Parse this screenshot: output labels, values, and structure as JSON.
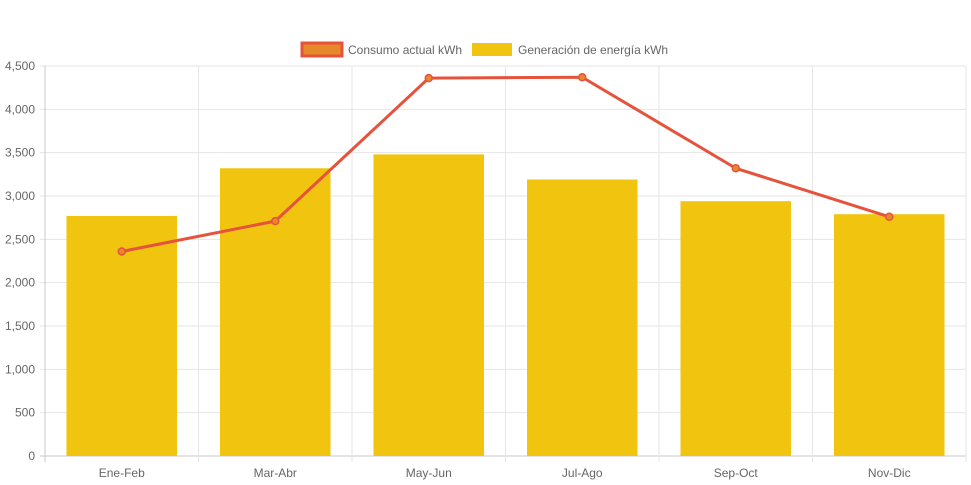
{
  "chart_data": {
    "type": "bar",
    "categories": [
      "Ene-Feb",
      "Mar-Abr",
      "May-Jun",
      "Jul-Ago",
      "Sep-Oct",
      "Nov-Dic"
    ],
    "series": [
      {
        "name": "Consumo actual kWh",
        "kind": "line",
        "color": "#e5533c",
        "fill_color": "#e5892b",
        "values": [
          2360,
          2710,
          4360,
          4370,
          3320,
          2760
        ]
      },
      {
        "name": "Generación de energía kWh",
        "kind": "bar",
        "color": "#f0c40f",
        "values": [
          2770,
          3320,
          3480,
          3190,
          2940,
          2790
        ]
      }
    ],
    "ylim": [
      0,
      4500
    ],
    "yticks": [
      0,
      500,
      1000,
      1500,
      2000,
      2500,
      3000,
      3500,
      4000,
      4500
    ],
    "ytick_labels": [
      "0",
      "500",
      "1,000",
      "1,500",
      "2,000",
      "2,500",
      "3,000",
      "3,500",
      "4,000",
      "4,500"
    ],
    "grid": true,
    "legend_position": "top-center",
    "title": "",
    "xlabel": "",
    "ylabel": ""
  }
}
